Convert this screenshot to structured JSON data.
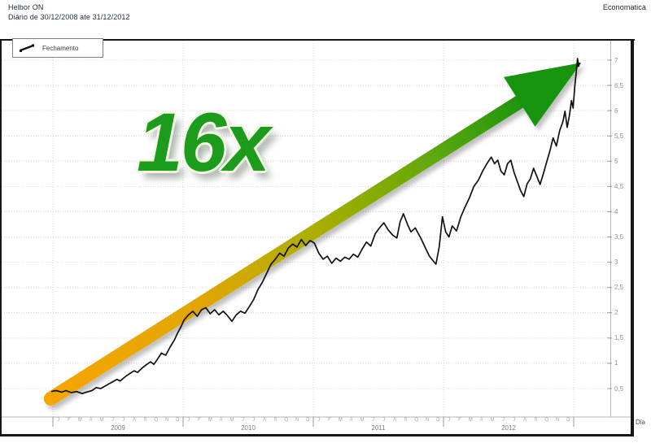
{
  "header": {
    "title": "Helbor ON",
    "subtitle": "Diário de 30/12/2008 ate 31/12/2012",
    "brand": "Economatica"
  },
  "legend": {
    "label": "Fechamento",
    "icon": "line-series-icon"
  },
  "annotation": {
    "multiplier_label": "16x"
  },
  "axis": {
    "x_title": "Dia",
    "years": [
      "2009",
      "2010",
      "2011",
      "2012"
    ],
    "month_letters": [
      "J",
      "F",
      "M",
      "A",
      "M",
      "J",
      "J",
      "A",
      "S",
      "O",
      "N",
      "D"
    ],
    "y_tick_values": [
      0.5,
      1,
      1.5,
      2,
      2.5,
      3,
      3.5,
      4,
      4.5,
      5,
      5.5,
      6,
      6.5,
      7
    ],
    "y_tick_labels": [
      "0,5",
      "1",
      "1,5",
      "2",
      "2,5",
      "3",
      "3,5",
      "4",
      "4,5",
      "5",
      "5,5",
      "6",
      "6,5",
      "7"
    ]
  },
  "colors": {
    "line": "#111111",
    "grid": "#d4d4d4",
    "axis": "#b5b5b5",
    "frame": "#161616",
    "green": "#1d9b1d",
    "arrow_gradient": [
      "#F6A500",
      "#DFA600",
      "#ABAF00",
      "#5FA808",
      "#18940F"
    ],
    "arrow_gradient_offsets": [
      0,
      0.3,
      0.5,
      0.72,
      0.9
    ]
  },
  "chart_data": {
    "type": "line",
    "title": "Helbor ON - Fechamento diário",
    "x_range": [
      "30/12/2008",
      "31/12/2012"
    ],
    "x_unit": "months_from_jan_2009",
    "ylim": [
      0,
      7.2
    ],
    "y_tick_step": 0.5,
    "grid": true,
    "legend_position": "top-left",
    "arrow": {
      "label": "16x",
      "from": [
        -0.2,
        0.3
      ],
      "to": [
        48.7,
        6.95
      ]
    },
    "series": [
      {
        "name": "Fechamento",
        "points": [
          [
            -0.15,
            0.44
          ],
          [
            0.3,
            0.46
          ],
          [
            0.8,
            0.43
          ],
          [
            1.2,
            0.46
          ],
          [
            1.7,
            0.42
          ],
          [
            2.2,
            0.44
          ],
          [
            2.7,
            0.4
          ],
          [
            3.1,
            0.43
          ],
          [
            3.6,
            0.46
          ],
          [
            4,
            0.52
          ],
          [
            4.4,
            0.5
          ],
          [
            4.9,
            0.56
          ],
          [
            5.4,
            0.62
          ],
          [
            5.9,
            0.68
          ],
          [
            6.2,
            0.65
          ],
          [
            6.7,
            0.74
          ],
          [
            7.1,
            0.8
          ],
          [
            7.5,
            0.85
          ],
          [
            7.8,
            0.82
          ],
          [
            8.2,
            0.9
          ],
          [
            8.6,
            0.97
          ],
          [
            9,
            1.03
          ],
          [
            9.3,
            0.98
          ],
          [
            9.7,
            1.1
          ],
          [
            10,
            1.2
          ],
          [
            10.4,
            1.16
          ],
          [
            10.8,
            1.32
          ],
          [
            11.2,
            1.46
          ],
          [
            11.5,
            1.6
          ],
          [
            11.8,
            1.72
          ],
          [
            12.1,
            1.86
          ],
          [
            12.5,
            1.96
          ],
          [
            12.9,
            2.03
          ],
          [
            13.3,
            1.93
          ],
          [
            13.7,
            2.06
          ],
          [
            14.1,
            2.1
          ],
          [
            14.5,
            1.98
          ],
          [
            14.9,
            2.06
          ],
          [
            15.3,
            1.96
          ],
          [
            15.7,
            2.03
          ],
          [
            16.1,
            1.94
          ],
          [
            16.5,
            1.83
          ],
          [
            16.9,
            1.96
          ],
          [
            17.3,
            2.03
          ],
          [
            17.7,
            1.99
          ],
          [
            18.1,
            2.12
          ],
          [
            18.5,
            2.26
          ],
          [
            18.9,
            2.46
          ],
          [
            19.3,
            2.6
          ],
          [
            19.7,
            2.78
          ],
          [
            20.1,
            2.96
          ],
          [
            20.5,
            3.06
          ],
          [
            20.9,
            3.18
          ],
          [
            21.3,
            3.12
          ],
          [
            21.7,
            3.28
          ],
          [
            22.1,
            3.36
          ],
          [
            22.5,
            3.3
          ],
          [
            22.9,
            3.45
          ],
          [
            23.3,
            3.33
          ],
          [
            23.7,
            3.43
          ],
          [
            24.1,
            3.38
          ],
          [
            24.5,
            3.18
          ],
          [
            24.9,
            3.06
          ],
          [
            25.3,
            3.12
          ],
          [
            25.7,
            2.98
          ],
          [
            26.1,
            3.08
          ],
          [
            26.5,
            3.02
          ],
          [
            26.9,
            3.1
          ],
          [
            27.3,
            3.06
          ],
          [
            27.7,
            3.16
          ],
          [
            28.1,
            3.1
          ],
          [
            28.5,
            3.26
          ],
          [
            28.9,
            3.4
          ],
          [
            29.3,
            3.32
          ],
          [
            29.7,
            3.56
          ],
          [
            30.1,
            3.68
          ],
          [
            30.5,
            3.78
          ],
          [
            30.9,
            3.64
          ],
          [
            31.3,
            3.54
          ],
          [
            31.7,
            3.48
          ],
          [
            32,
            3.8
          ],
          [
            32.3,
            3.96
          ],
          [
            32.7,
            3.74
          ],
          [
            33,
            3.6
          ],
          [
            33.4,
            3.68
          ],
          [
            33.9,
            3.48
          ],
          [
            34.3,
            3.3
          ],
          [
            34.7,
            3.12
          ],
          [
            35,
            3.04
          ],
          [
            35.3,
            2.96
          ],
          [
            35.6,
            3.3
          ],
          [
            35.9,
            3.9
          ],
          [
            36.2,
            3.6
          ],
          [
            36.5,
            3.5
          ],
          [
            36.8,
            3.72
          ],
          [
            37.2,
            3.62
          ],
          [
            37.6,
            3.9
          ],
          [
            38,
            4.1
          ],
          [
            38.4,
            4.28
          ],
          [
            38.8,
            4.5
          ],
          [
            39.2,
            4.62
          ],
          [
            39.6,
            4.8
          ],
          [
            40,
            4.95
          ],
          [
            40.4,
            5.08
          ],
          [
            40.7,
            4.95
          ],
          [
            41,
            5.02
          ],
          [
            41.3,
            4.8
          ],
          [
            41.6,
            4.73
          ],
          [
            41.9,
            4.95
          ],
          [
            42.2,
            5.02
          ],
          [
            42.5,
            4.78
          ],
          [
            42.8,
            4.6
          ],
          [
            43.1,
            4.42
          ],
          [
            43.4,
            4.3
          ],
          [
            43.7,
            4.55
          ],
          [
            44,
            4.65
          ],
          [
            44.3,
            4.86
          ],
          [
            44.6,
            4.7
          ],
          [
            44.9,
            4.54
          ],
          [
            45.2,
            4.75
          ],
          [
            45.5,
            4.98
          ],
          [
            45.8,
            5.2
          ],
          [
            46.1,
            5.46
          ],
          [
            46.4,
            5.3
          ],
          [
            46.7,
            5.6
          ],
          [
            47,
            5.78
          ],
          [
            47.2,
            5.99
          ],
          [
            47.4,
            5.67
          ],
          [
            47.6,
            5.9
          ],
          [
            47.8,
            6.2
          ],
          [
            47.95,
            6.05
          ],
          [
            48.1,
            6.47
          ],
          [
            48.25,
            6.79
          ],
          [
            48.35,
            7.03
          ],
          [
            48.45,
            6.88
          ],
          [
            48.55,
            6.95
          ]
        ]
      }
    ]
  }
}
